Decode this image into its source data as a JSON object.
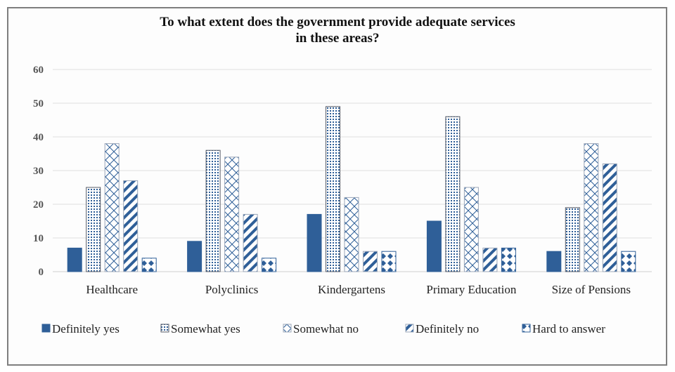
{
  "chart_data": {
    "type": "bar",
    "title_line1": "To what extent does the government provide adequate services",
    "title_line2": "in these areas?",
    "xlabel": "",
    "ylabel": "",
    "ylim": [
      0,
      60
    ],
    "yticks": [
      0,
      10,
      20,
      30,
      40,
      50,
      60
    ],
    "grid": true,
    "legend_position": "bottom",
    "categories": [
      "Healthcare",
      "Polyclinics",
      "Kindergartens",
      "Primary Education",
      "Size of Pensions"
    ],
    "series": [
      {
        "name": "Definitely yes",
        "pattern": "solid",
        "values": [
          7,
          9,
          17,
          15,
          6
        ]
      },
      {
        "name": "Somewhat yes",
        "pattern": "dots",
        "values": [
          25,
          36,
          49,
          46,
          19
        ]
      },
      {
        "name": "Somewhat no",
        "pattern": "weave",
        "values": [
          38,
          34,
          22,
          25,
          38
        ]
      },
      {
        "name": "Definitely no",
        "pattern": "diagonal",
        "values": [
          27,
          17,
          6,
          7,
          32
        ]
      },
      {
        "name": "Hard to answer",
        "pattern": "diamonds",
        "values": [
          4,
          4,
          6,
          7,
          6
        ]
      }
    ],
    "colors": {
      "primary": "#2f5f98",
      "grid": "#e0e0e0",
      "frame": "#7f7f7f"
    }
  }
}
